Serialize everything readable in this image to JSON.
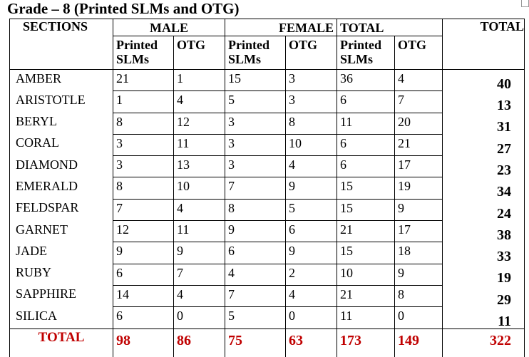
{
  "title": "Grade – 8 (Printed SLMs and OTG)",
  "table": {
    "headers": {
      "sections": "SECTIONS",
      "male": "MALE",
      "female": "FEMALE",
      "total": "TOTAL",
      "grand_total": "TOTAL"
    },
    "subheaders": [
      "Printed SLMs",
      "OTG",
      "Printed SLMs",
      "OTG",
      "Printed SLMs",
      "OTG"
    ],
    "rows": [
      [
        "AMBER",
        21,
        1,
        15,
        3,
        36,
        4,
        40
      ],
      [
        "ARISTOTLE",
        1,
        4,
        5,
        3,
        6,
        7,
        13
      ],
      [
        "BERYL",
        8,
        12,
        3,
        8,
        11,
        20,
        31
      ],
      [
        "CORAL",
        3,
        11,
        3,
        10,
        6,
        21,
        27
      ],
      [
        "DIAMOND",
        3,
        13,
        3,
        4,
        6,
        17,
        23
      ],
      [
        "EMERALD",
        8,
        10,
        7,
        9,
        15,
        19,
        34
      ],
      [
        "FELDSPAR",
        7,
        4,
        8,
        5,
        15,
        9,
        24
      ],
      [
        "GARNET",
        12,
        11,
        9,
        6,
        21,
        17,
        38
      ],
      [
        "JADE",
        9,
        9,
        6,
        9,
        15,
        18,
        33
      ],
      [
        "RUBY",
        6,
        7,
        4,
        2,
        10,
        9,
        19
      ],
      [
        "SAPPHIRE",
        14,
        4,
        7,
        4,
        21,
        8,
        29
      ],
      [
        "SILICA",
        6,
        0,
        5,
        0,
        11,
        0,
        11
      ]
    ],
    "total_row": [
      "TOTAL",
      98,
      86,
      75,
      63,
      173,
      149,
      322
    ]
  }
}
